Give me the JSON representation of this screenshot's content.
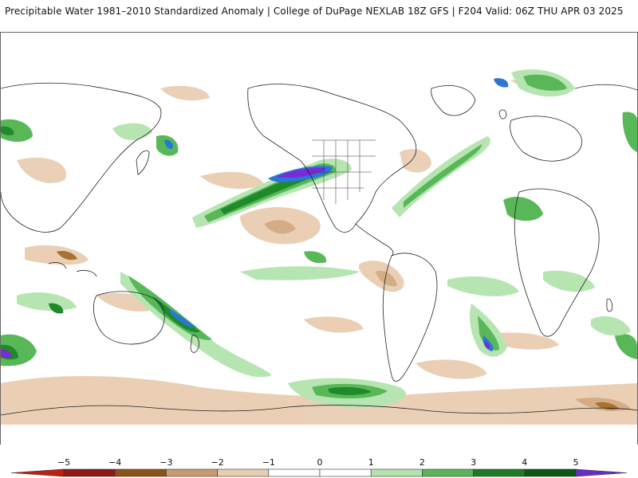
{
  "header": {
    "title": "Precipitable Water 1981–2010 Standardized Anomaly | College of DuPage NEXLAB   18Z GFS | F204 Valid: 06Z THU APR 03 2025"
  },
  "map": {
    "projection": "global-cylindrical",
    "colors": {
      "positive_1": "#b6e5b2",
      "positive_2": "#58b858",
      "positive_3": "#1e8a2a",
      "positive_4": "#0c5c16",
      "positive_5": "#2b76d6",
      "positive_6": "#7a2ad6",
      "negative_1": "#e9cdb2",
      "negative_2": "#d2a980",
      "negative_3": "#a36b2a",
      "negative_4": "#8c2810",
      "coastline": "#222222"
    }
  },
  "colorbar": {
    "tick_labels": [
      "−5",
      "−4",
      "−3",
      "−2",
      "−1",
      "0",
      "1",
      "2",
      "3",
      "4",
      "5"
    ],
    "segment_colors": [
      "#c02010",
      "#901818",
      "#8a5418",
      "#c89a70",
      "#e6cdb4",
      "#ffffff",
      "#ffffff",
      "#b5e2b0",
      "#5ab55a",
      "#1f7a26",
      "#0c5616",
      "#2f7ee0",
      "#6a2cc4"
    ]
  }
}
